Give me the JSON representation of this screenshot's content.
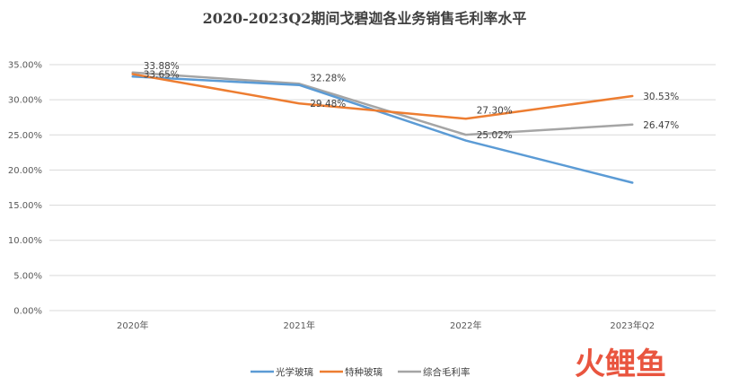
{
  "chart_data": {
    "type": "line",
    "title": "2020-2023Q2期间戈碧迦各业务销售毛利率水平",
    "xlabel": "",
    "ylabel": "",
    "categories": [
      "2020年",
      "2021年",
      "2022年",
      "2023年Q2"
    ],
    "ylim": [
      0,
      35
    ],
    "yticks": [
      "0.00%",
      "5.00%",
      "10.00%",
      "15.00%",
      "20.00%",
      "25.00%",
      "30.00%",
      "35.00%"
    ],
    "ytick_values": [
      0,
      5,
      10,
      15,
      20,
      25,
      30,
      35
    ],
    "grid": true,
    "legend_position": "bottom",
    "series": [
      {
        "name": "光学玻璃",
        "values": [
          33.3,
          32.1,
          24.2,
          18.2
        ],
        "color": "#5b9bd5",
        "labels": [
          "",
          "",
          "",
          ""
        ]
      },
      {
        "name": "特种玻璃",
        "values": [
          33.65,
          29.48,
          27.3,
          30.53
        ],
        "color": "#ed7d31",
        "labels": [
          "33.65%",
          "29.48%",
          "27.30%",
          "30.53%"
        ]
      },
      {
        "name": "综合毛利率",
        "values": [
          33.88,
          32.28,
          25.02,
          26.47
        ],
        "color": "#a5a5a5",
        "labels": [
          "33.88%",
          "32.28%",
          "25.02%",
          "26.47%"
        ]
      }
    ]
  },
  "watermark": {
    "text": "火鲤鱼",
    "color": "#e8472f"
  }
}
